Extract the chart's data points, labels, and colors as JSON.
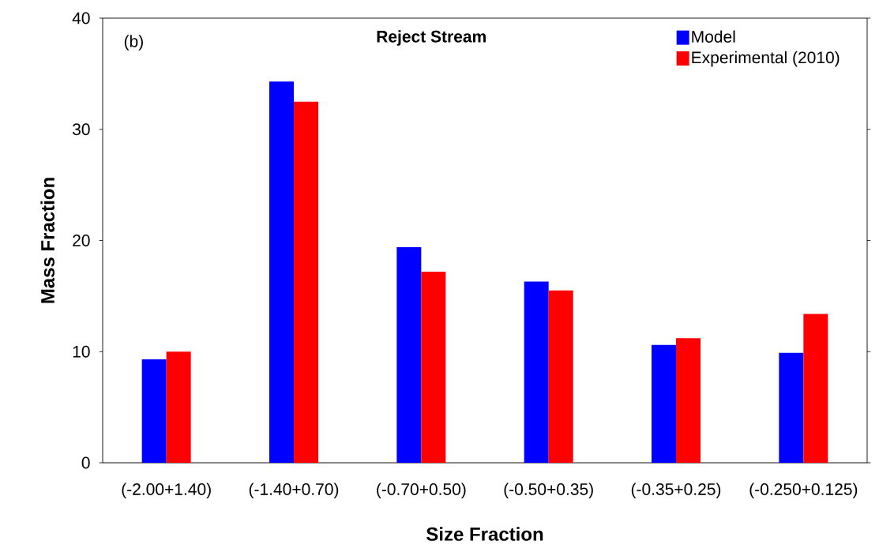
{
  "chart_data": {
    "type": "bar",
    "title": "Reject Stream",
    "xlabel": "Size Fraction",
    "ylabel": "Mass Fraction",
    "categories": [
      "(-2.00+1.40)",
      "(-1.40+0.70)",
      "(-0.70+0.50)",
      "(-0.50+0.35)",
      "(-0.35+0.25)",
      "(-0.250+0.125)"
    ],
    "series": [
      {
        "name": "Model",
        "color": "#0000ff",
        "values": [
          9.3,
          34.3,
          19.4,
          16.3,
          10.6,
          9.9
        ]
      },
      {
        "name": "Experimental (2010)",
        "color": "#ff0000",
        "values": [
          10.0,
          32.5,
          17.2,
          15.5,
          11.2,
          13.4
        ]
      }
    ],
    "ylim": [
      0,
      40
    ],
    "yticks": [
      0,
      10,
      20,
      30,
      40
    ],
    "grid": false,
    "legend": "top right",
    "annotations": [
      "(b)"
    ]
  }
}
